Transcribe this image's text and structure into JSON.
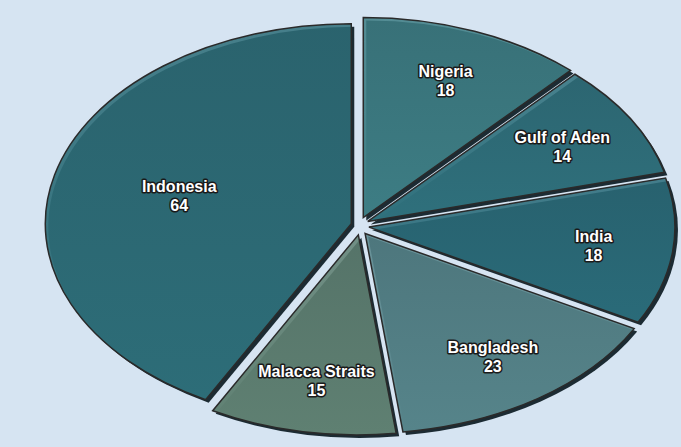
{
  "chart_data": {
    "type": "pie",
    "categories": [
      "Nigeria",
      "Gulf of Aden",
      "India",
      "Bangladesh",
      "Malacca Straits",
      "Indonesia"
    ],
    "values": [
      18,
      14,
      18,
      23,
      15,
      64
    ],
    "colors": [
      "#3d7d84",
      "#2f707c",
      "#2a6b79",
      "#56848a",
      "#5f8072",
      "#2d6d78"
    ],
    "data_labels": true
  }
}
